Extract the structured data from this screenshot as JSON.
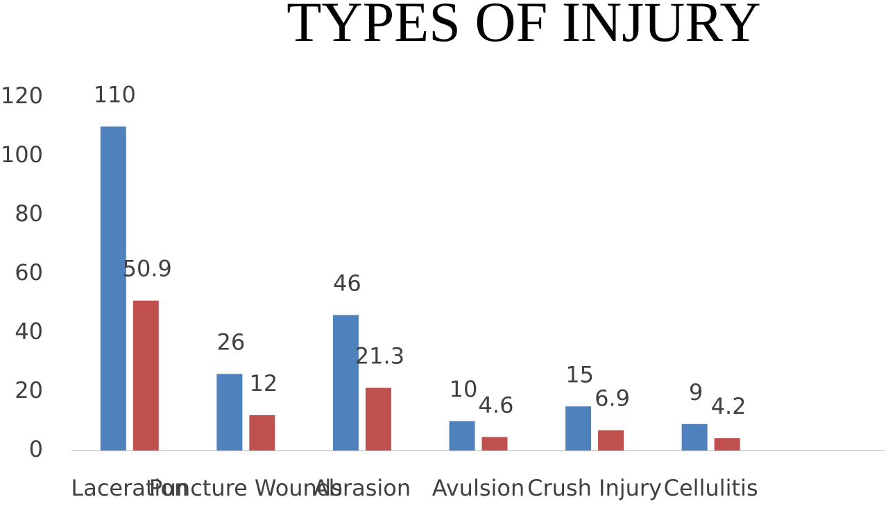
{
  "chart_data": {
    "type": "bar",
    "title": "TYPES OF INJURY",
    "categories": [
      "Laceration",
      "Puncture Wounds",
      "Abrasion",
      "Avulsion",
      "Crush Injury",
      "Cellulitis",
      null
    ],
    "series": [
      {
        "color": "#4f81bd",
        "values": [
          110,
          26,
          46,
          10,
          15,
          9,
          null
        ]
      },
      {
        "color": "#c0504d",
        "values": [
          50.9,
          12,
          21.3,
          4.6,
          6.9,
          4.2,
          null
        ]
      }
    ],
    "ylim": [
      0,
      120
    ],
    "yticks": [
      0,
      20,
      40,
      60,
      80,
      100,
      120
    ],
    "grid": false
  }
}
